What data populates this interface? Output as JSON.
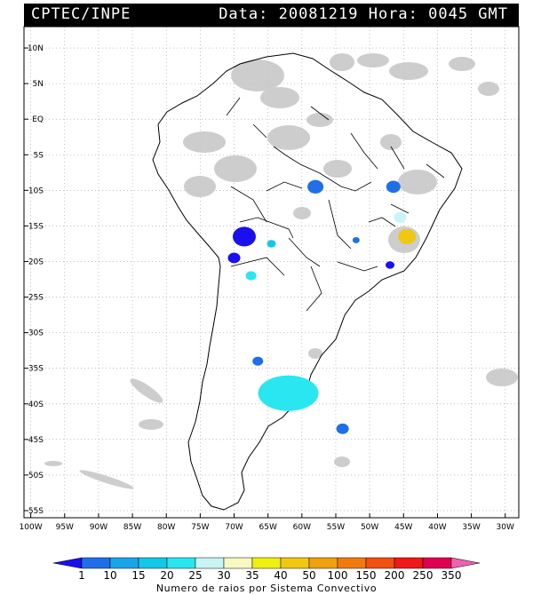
{
  "header": {
    "org": "CPTEC/INPE",
    "stamp": "Data: 20081219 Hora: 0045 GMT"
  },
  "axes": {
    "lat_ticks": [
      "10N",
      "5N",
      "EQ",
      "5S",
      "10S",
      "15S",
      "20S",
      "25S",
      "30S",
      "35S",
      "40S",
      "45S",
      "50S",
      "55S"
    ],
    "lat_values": [
      10,
      5,
      0,
      -5,
      -10,
      -15,
      -20,
      -25,
      -30,
      -35,
      -40,
      -45,
      -50,
      -55
    ],
    "lon_ticks": [
      "100W",
      "95W",
      "90W",
      "85W",
      "80W",
      "75W",
      "70W",
      "65W",
      "60W",
      "55W",
      "50W",
      "45W",
      "40W",
      "35W",
      "30W"
    ],
    "lon_values": [
      -100,
      -95,
      -90,
      -85,
      -80,
      -75,
      -70,
      -65,
      -60,
      -55,
      -50,
      -45,
      -40,
      -35,
      -30
    ],
    "lon_range": [
      -101,
      -28
    ],
    "lat_range": [
      13,
      -56
    ],
    "grid": "dotted"
  },
  "legend": {
    "labels": [
      "1",
      "10",
      "15",
      "20",
      "25",
      "30",
      "35",
      "40",
      "50",
      "100",
      "150",
      "200",
      "250",
      "350"
    ],
    "colors": [
      "#1a10ee",
      "#1f6fe8",
      "#1aa5e8",
      "#12c8e8",
      "#2ae6f0",
      "#c8f4f4",
      "#f8f8c0",
      "#f0f010",
      "#f0c810",
      "#f0a010",
      "#f07a10",
      "#f05010",
      "#f01818",
      "#e00050",
      "#f060b0"
    ],
    "caption": "Numero de raios por Sistema Convectivo"
  },
  "systems": [
    {
      "lon": -58,
      "lat": -9.5,
      "level": 10
    },
    {
      "lon": -46.5,
      "lat": -9.5,
      "level": 10
    },
    {
      "lon": -45.5,
      "lat": -13.8,
      "level": 30
    },
    {
      "lon": -44.5,
      "lat": -16.5,
      "level": 50
    },
    {
      "lon": -68.5,
      "lat": -16.5,
      "level": 1
    },
    {
      "lon": -70,
      "lat": -19.5,
      "level": 1
    },
    {
      "lon": -67.5,
      "lat": -22,
      "level": 25
    },
    {
      "lon": -62,
      "lat": -38.5,
      "level": 25
    },
    {
      "lon": -66.5,
      "lat": -34,
      "level": 10
    },
    {
      "lon": -54,
      "lat": -43.5,
      "level": 10
    },
    {
      "lon": -47,
      "lat": -20.5,
      "level": 1
    },
    {
      "lon": -64.5,
      "lat": -17.5,
      "level": 20
    },
    {
      "lon": -52,
      "lat": -17,
      "level": 10
    }
  ]
}
